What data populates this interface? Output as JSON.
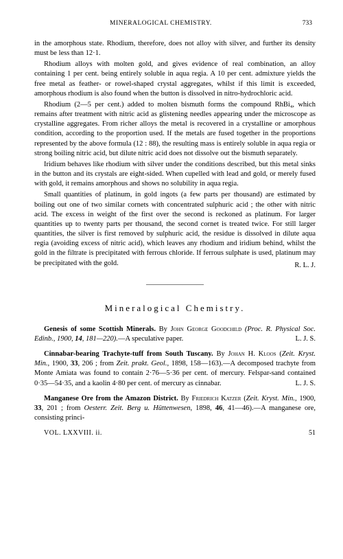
{
  "header": {
    "title": "MINERALOGICAL CHEMISTRY.",
    "pageNum": "733"
  },
  "paragraphs": {
    "p1": "in the amorphous state. Rhodium, therefore, does not alloy with silver, and further its density must be less than 12·1.",
    "p2": "Rhodium alloys with molten gold, and gives evidence of real combination, an alloy containing 1 per cent. being entirely soluble in aqua regia. A 10 per cent. admixture yields the free metal as feather- or rowel-shaped crystal aggregates, whilst if this limit is exceeded, amorphous rhodium is also found when the button is dissolved in nitro-hydrochloric acid.",
    "p3": "Rhodium (2—5 per cent.) added to molten bismuth forms the compound RhBi₄, which remains after treatment with nitric acid as glistening needles appearing under the microscope as crystalline aggregates. From richer alloys the metal is recovered in a crystalline or amorphous condition, according to the proportion used. If the metals are fused together in the proportions represented by the above formula (12 : 88), the resulting mass is entirely soluble in aqua regia or strong boiling nitric acid, but dilute nitric acid does not dissolve out the bismuth separately.",
    "p4": "Iridium behaves like rhodium with silver under the conditions described, but this metal sinks in the button and its crystals are eight-sided. When cupelled with lead and gold, or merely fused with gold, it remains amorphous and shows no solubility in aqua regia.",
    "p5": "Small quantities of platinum, in gold ingots (a few parts per thousand) are estimated by boiling out one of two similar cornets with concentrated sulphuric acid ; the other with nitric acid. The excess in weight of the first over the second is reckoned as platinum. For larger quantities up to twenty parts per thousand, the second cornet is treated twice. For still larger quantities, the silver is first removed by sulphuric acid, the residue is dissolved in dilute aqua regia (avoiding excess of nitric acid), which leaves any rhodium and iridium behind, whilst the gold in the filtrate is precipitated with ferrous chloride. If ferrous sulphate is used, platinum may be precipitated with the gold.",
    "sig1": "R. L. J."
  },
  "divider": "————————",
  "sectionTitle": "Mineralogical Chemistry.",
  "entries": {
    "e1": {
      "title": "Genesis of some Scottish Minerals.",
      "author": "John George Goodchild",
      "ref": "(Proc. R. Physical Soc. Edinb., 1900, 14, 181—220).—A speculative paper.",
      "sig": "L. J. S."
    },
    "e2": {
      "title": "Cinnabar-bearing Trachyte-tuff from South Tuscany.",
      "author": "Johan H. Kloos",
      "ref": "(Zeit. Kryst. Min., 1900, 33, 206 ; from Zeit. prakt. Geol., 1898, 158—163).—A decomposed trachyte from Monte Amiata was found to contain 2·76—5·36 per cent. of mercury. Felspar-sand contained 0·35—54·35, and a kaolin 4·80 per cent. of mercury as cinnabar.",
      "sig": "L. J. S."
    },
    "e3": {
      "title": "Manganese Ore from the Amazon District.",
      "author": "Friedrich Katzer",
      "ref": "(Zeit. Kryst. Min., 1900, 33, 201 ; from Oesterr. Zeit. Berg u. Hüttenwesen, 1898, 46, 41—46).—A manganese ore, consisting princi-"
    }
  },
  "footer": {
    "vol": "VOL. LXXVIII. ii.",
    "num": "51"
  }
}
